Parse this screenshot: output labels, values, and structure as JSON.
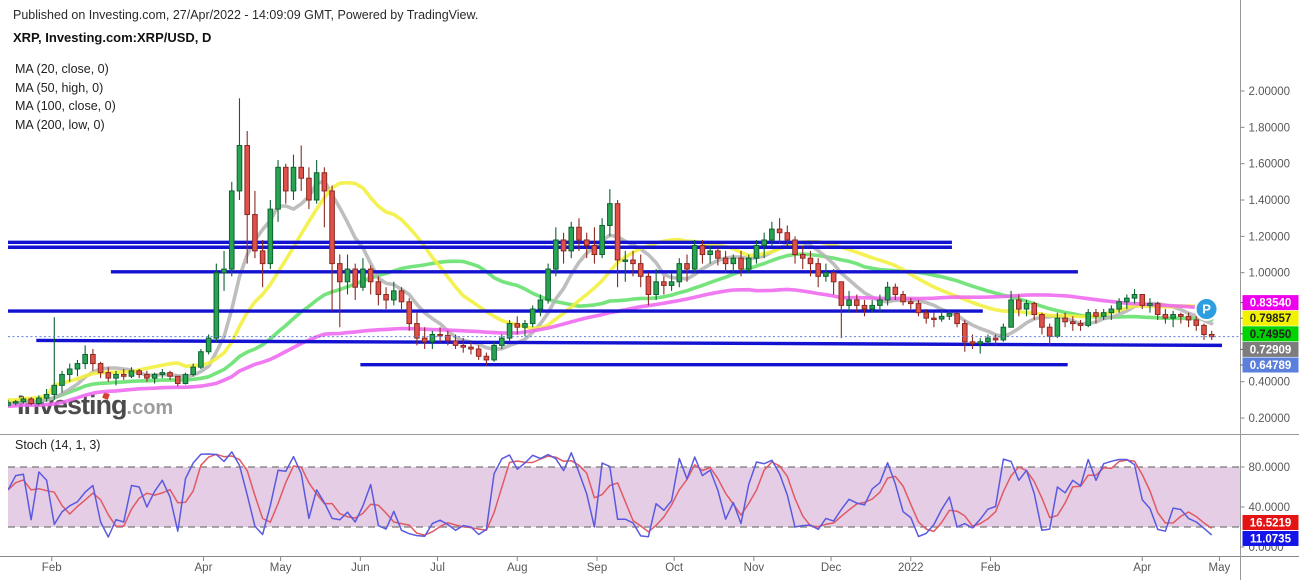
{
  "header": {
    "published": "Published on Investing.com, 27/Apr/2022 - 14:09:09 GMT, Powered by TradingView.",
    "symbol": "XRP, Investing.com:XRP/USD, D"
  },
  "legend": {
    "ma": [
      "MA (20, close, 0)",
      "MA (50, high, 0)",
      "MA (100, close, 0)",
      "MA (200, low, 0)"
    ],
    "stoch": "Stoch (14, 1, 3)"
  },
  "watermark": {
    "main": "Investing",
    "suffix": ".com"
  },
  "chart_data": {
    "type": "candlestick",
    "symbol": "XRP/USD",
    "interval": "D",
    "days_per_candle": 3,
    "first_open": 0.27,
    "candles": [
      [
        0.3,
        0.265,
        0.285
      ],
      [
        0.3,
        0.27,
        0.29
      ],
      [
        0.32,
        0.28,
        0.305
      ],
      [
        0.315,
        0.27,
        0.28
      ],
      [
        0.325,
        0.27,
        0.31
      ],
      [
        0.36,
        0.29,
        0.33
      ],
      [
        0.755,
        0.3,
        0.38
      ],
      [
        0.46,
        0.34,
        0.44
      ],
      [
        0.5,
        0.4,
        0.47
      ],
      [
        0.52,
        0.43,
        0.5
      ],
      [
        0.6,
        0.47,
        0.55
      ],
      [
        0.58,
        0.46,
        0.5
      ],
      [
        0.51,
        0.42,
        0.45
      ],
      [
        0.48,
        0.4,
        0.42
      ],
      [
        0.46,
        0.38,
        0.44
      ],
      [
        0.47,
        0.41,
        0.43
      ],
      [
        0.48,
        0.42,
        0.46
      ],
      [
        0.47,
        0.42,
        0.44
      ],
      [
        0.46,
        0.4,
        0.42
      ],
      [
        0.45,
        0.39,
        0.44
      ],
      [
        0.47,
        0.42,
        0.45
      ],
      [
        0.46,
        0.41,
        0.43
      ],
      [
        0.43,
        0.375,
        0.39
      ],
      [
        0.45,
        0.385,
        0.44
      ],
      [
        0.5,
        0.43,
        0.48
      ],
      [
        0.58,
        0.47,
        0.565
      ],
      [
        0.66,
        0.55,
        0.64
      ],
      [
        1.05,
        0.62,
        1.0
      ],
      [
        1.12,
        0.9,
        1.02
      ],
      [
        1.5,
        0.98,
        1.45
      ],
      [
        1.96,
        1.4,
        1.7
      ],
      [
        1.78,
        1.05,
        1.32
      ],
      [
        1.45,
        1.08,
        1.12
      ],
      [
        1.18,
        0.92,
        1.05
      ],
      [
        1.4,
        1.02,
        1.35
      ],
      [
        1.62,
        1.28,
        1.58
      ],
      [
        1.6,
        1.38,
        1.45
      ],
      [
        1.65,
        1.4,
        1.58
      ],
      [
        1.7,
        1.45,
        1.52
      ],
      [
        1.58,
        1.35,
        1.4
      ],
      [
        1.62,
        1.38,
        1.55
      ],
      [
        1.58,
        1.25,
        1.45
      ],
      [
        1.48,
        0.79,
        1.05
      ],
      [
        1.1,
        0.7,
        0.95
      ],
      [
        1.1,
        0.88,
        1.02
      ],
      [
        1.05,
        0.85,
        0.92
      ],
      [
        1.08,
        0.9,
        1.02
      ],
      [
        1.04,
        0.88,
        0.95
      ],
      [
        0.98,
        0.82,
        0.88
      ],
      [
        0.92,
        0.8,
        0.85
      ],
      [
        0.95,
        0.82,
        0.9
      ],
      [
        0.92,
        0.8,
        0.84
      ],
      [
        0.86,
        0.68,
        0.72
      ],
      [
        0.78,
        0.6,
        0.64
      ],
      [
        0.7,
        0.58,
        0.62
      ],
      [
        0.68,
        0.58,
        0.66
      ],
      [
        0.7,
        0.615,
        0.655
      ],
      [
        0.68,
        0.6,
        0.625
      ],
      [
        0.66,
        0.58,
        0.6
      ],
      [
        0.64,
        0.56,
        0.59
      ],
      [
        0.62,
        0.55,
        0.58
      ],
      [
        0.6,
        0.52,
        0.54
      ],
      [
        0.56,
        0.49,
        0.52
      ],
      [
        0.62,
        0.51,
        0.6
      ],
      [
        0.66,
        0.58,
        0.64
      ],
      [
        0.74,
        0.62,
        0.72
      ],
      [
        0.76,
        0.66,
        0.7
      ],
      [
        0.74,
        0.65,
        0.72
      ],
      [
        0.82,
        0.7,
        0.8
      ],
      [
        0.88,
        0.76,
        0.85
      ],
      [
        1.05,
        0.83,
        1.02
      ],
      [
        1.25,
        0.98,
        1.18
      ],
      [
        1.22,
        1.05,
        1.12
      ],
      [
        1.28,
        1.08,
        1.25
      ],
      [
        1.3,
        1.12,
        1.18
      ],
      [
        1.22,
        1.08,
        1.15
      ],
      [
        1.25,
        1.05,
        1.1
      ],
      [
        1.3,
        1.08,
        1.26
      ],
      [
        1.46,
        1.2,
        1.38
      ],
      [
        1.4,
        0.92,
        1.07
      ],
      [
        1.12,
        0.95,
        1.07
      ],
      [
        1.12,
        0.98,
        1.05
      ],
      [
        1.1,
        0.92,
        0.98
      ],
      [
        1.0,
        0.82,
        0.88
      ],
      [
        1.02,
        0.85,
        0.95
      ],
      [
        0.98,
        0.88,
        0.93
      ],
      [
        1.0,
        0.9,
        0.95
      ],
      [
        1.08,
        0.92,
        1.05
      ],
      [
        1.1,
        0.95,
        1.02
      ],
      [
        1.18,
        1.0,
        1.15
      ],
      [
        1.18,
        1.05,
        1.1
      ],
      [
        1.15,
        1.05,
        1.12
      ],
      [
        1.14,
        1.04,
        1.08
      ],
      [
        1.12,
        1.0,
        1.05
      ],
      [
        1.1,
        1.0,
        1.08
      ],
      [
        1.12,
        0.98,
        1.02
      ],
      [
        1.1,
        1.0,
        1.08
      ],
      [
        1.18,
        1.05,
        1.15
      ],
      [
        1.22,
        1.08,
        1.18
      ],
      [
        1.28,
        1.15,
        1.24
      ],
      [
        1.3,
        1.16,
        1.22
      ],
      [
        1.26,
        1.15,
        1.18
      ],
      [
        1.2,
        1.05,
        1.1
      ],
      [
        1.15,
        1.02,
        1.08
      ],
      [
        1.12,
        0.98,
        1.05
      ],
      [
        1.08,
        0.92,
        0.98
      ],
      [
        1.05,
        0.95,
        1.0
      ],
      [
        1.02,
        0.88,
        0.95
      ],
      [
        0.95,
        0.64,
        0.82
      ],
      [
        0.9,
        0.78,
        0.85
      ],
      [
        0.88,
        0.78,
        0.82
      ],
      [
        0.85,
        0.76,
        0.8
      ],
      [
        0.85,
        0.78,
        0.82
      ],
      [
        0.88,
        0.78,
        0.85
      ],
      [
        0.95,
        0.82,
        0.92
      ],
      [
        0.94,
        0.85,
        0.88
      ],
      [
        0.9,
        0.82,
        0.84
      ],
      [
        0.86,
        0.8,
        0.83
      ],
      [
        0.85,
        0.76,
        0.78
      ],
      [
        0.8,
        0.72,
        0.75
      ],
      [
        0.78,
        0.7,
        0.745
      ],
      [
        0.8,
        0.73,
        0.76
      ],
      [
        0.79,
        0.74,
        0.775
      ],
      [
        0.78,
        0.7,
        0.72
      ],
      [
        0.74,
        0.565,
        0.62
      ],
      [
        0.66,
        0.58,
        0.61
      ],
      [
        0.64,
        0.555,
        0.62
      ],
      [
        0.66,
        0.6,
        0.64
      ],
      [
        0.66,
        0.6,
        0.63
      ],
      [
        0.72,
        0.62,
        0.7
      ],
      [
        0.9,
        0.7,
        0.85
      ],
      [
        0.88,
        0.76,
        0.8
      ],
      [
        0.85,
        0.76,
        0.83
      ],
      [
        0.84,
        0.74,
        0.77
      ],
      [
        0.78,
        0.66,
        0.7
      ],
      [
        0.72,
        0.6,
        0.65
      ],
      [
        0.78,
        0.64,
        0.75
      ],
      [
        0.78,
        0.7,
        0.73
      ],
      [
        0.76,
        0.68,
        0.72
      ],
      [
        0.74,
        0.68,
        0.71
      ],
      [
        0.8,
        0.7,
        0.78
      ],
      [
        0.8,
        0.72,
        0.76
      ],
      [
        0.8,
        0.74,
        0.78
      ],
      [
        0.82,
        0.74,
        0.8
      ],
      [
        0.86,
        0.78,
        0.84
      ],
      [
        0.88,
        0.8,
        0.86
      ],
      [
        0.91,
        0.83,
        0.88
      ],
      [
        0.88,
        0.8,
        0.82
      ],
      [
        0.86,
        0.78,
        0.83
      ],
      [
        0.84,
        0.74,
        0.77
      ],
      [
        0.8,
        0.72,
        0.75
      ],
      [
        0.79,
        0.7,
        0.77
      ],
      [
        0.78,
        0.72,
        0.76
      ],
      [
        0.78,
        0.7,
        0.74
      ],
      [
        0.76,
        0.68,
        0.71
      ],
      [
        0.72,
        0.63,
        0.66
      ],
      [
        0.68,
        0.63,
        0.648
      ]
    ],
    "candle_colors": {
      "up_body": "#29a453",
      "up_border": "#0e6232",
      "down_body": "#e0514b",
      "down_border": "#8a2a22"
    },
    "ma_overlays": [
      {
        "label": "MA (20, close, 0)",
        "period": 20,
        "source": "close",
        "window_samples": 7,
        "color": "#b5b5b5",
        "last_value": "0.72909"
      },
      {
        "label": "MA (50, high, 0)",
        "period": 50,
        "source": "high",
        "window_samples": 17,
        "color": "#f3ef3a",
        "last_value": "0.79857"
      },
      {
        "label": "MA (100, close, 0)",
        "period": 100,
        "source": "close",
        "window_samples": 33,
        "color": "#63e06b",
        "last_value": "0.74950"
      },
      {
        "label": "MA (200, low, 0)",
        "period": 200,
        "source": "low",
        "window_samples": 67,
        "color": "#ef66ef",
        "last_value": "0.83540"
      }
    ],
    "support_resistance_lines": [
      {
        "price_start": 1.167,
        "price_end": 1.167,
        "day_start": 0,
        "day_end": 367
      },
      {
        "price_start": 1.14,
        "price_end": 1.14,
        "day_start": 0,
        "day_end": 367
      },
      {
        "price_start": 1.005,
        "price_end": 1.005,
        "day_start": 40,
        "day_end": 416
      },
      {
        "price_start": 0.789,
        "price_end": 0.789,
        "day_start": 0,
        "day_end": 379
      },
      {
        "price_start": 0.627,
        "price_end": 0.6,
        "day_start": 11,
        "day_end": 472
      },
      {
        "price_start": 0.494,
        "price_end": 0.494,
        "day_start": 137,
        "day_end": 412
      }
    ],
    "sr_color": "#1212d0",
    "current_price": {
      "value": 0.64789,
      "label": "0.64789",
      "line_color": "#6080e0"
    },
    "price_scale": {
      "ticks": [
        {
          "label": "2.00000",
          "value": 2.0
        },
        {
          "label": "1.80000",
          "value": 1.8
        },
        {
          "label": "1.60000",
          "value": 1.6
        },
        {
          "label": "1.40000",
          "value": 1.4
        },
        {
          "label": "1.20000",
          "value": 1.2
        },
        {
          "label": "1.00000",
          "value": 1.0
        },
        {
          "label": "0.40000",
          "value": 0.4
        },
        {
          "label": "0.20000",
          "value": 0.2
        }
      ],
      "badges": [
        {
          "label": "0.83540",
          "value": 0.8354,
          "bg": "#ee00ee",
          "fg": "#ffffff"
        },
        {
          "label": "0.79857",
          "value": 0.79857,
          "bg": "#f2f200",
          "fg": "#222222"
        },
        {
          "label": "0.74950",
          "value": 0.7495,
          "bg": "#00d400",
          "fg": "#222222"
        },
        {
          "label": "0.72909",
          "value": 0.72909,
          "bg": "#7d7d7d",
          "fg": "#ffffff"
        },
        {
          "label": "0.64789",
          "value": 0.64789,
          "bg": "#5b7fdc",
          "fg": "#ffffff"
        }
      ]
    },
    "time_scale": {
      "ticks": [
        {
          "label": "Feb",
          "day": 17
        },
        {
          "label": "Apr",
          "day": 76
        },
        {
          "label": "May",
          "day": 106
        },
        {
          "label": "Jun",
          "day": 137
        },
        {
          "label": "Jul",
          "day": 167
        },
        {
          "label": "Aug",
          "day": 198
        },
        {
          "label": "Sep",
          "day": 229
        },
        {
          "label": "Oct",
          "day": 259
        },
        {
          "label": "Nov",
          "day": 290
        },
        {
          "label": "Dec",
          "day": 320
        },
        {
          "label": "2022",
          "day": 351
        },
        {
          "label": "Feb",
          "day": 382
        },
        {
          "label": "Apr",
          "day": 441
        },
        {
          "label": "May",
          "day": 471
        }
      ]
    },
    "marker": {
      "label": "P",
      "day": 466,
      "price": 0.8,
      "color": "#2d9fe0"
    },
    "stoch": {
      "k_period": 5,
      "d_period": 3,
      "k_color": "#5a5ae0",
      "d_color": "#e05a64",
      "band": [
        20,
        80
      ],
      "band_color": "rgba(186,124,186,0.38)",
      "band_border": "#777777",
      "ticks": [
        {
          "label": "80.0000",
          "value": 80
        },
        {
          "label": "40.0000",
          "value": 40
        },
        {
          "label": "0.0000",
          "value": 0
        }
      ],
      "badges": [
        {
          "label": "16.5219",
          "value": 16.5219,
          "bg": "#e41414",
          "fg": "#ffffff"
        },
        {
          "label": "11.0735",
          "value": 11.0735,
          "bg": "#1414e8",
          "fg": "#ffffff"
        }
      ]
    }
  }
}
